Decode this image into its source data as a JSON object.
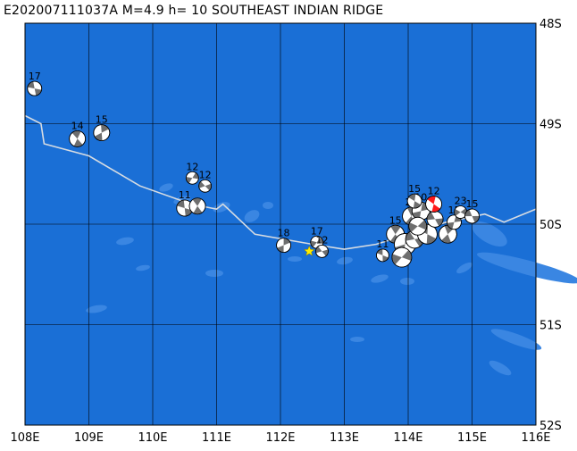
{
  "header": {
    "title": "E202007111037A  M=4.9  h= 10 SOUTHEAST INDIAN RIDGE"
  },
  "map": {
    "lon_range": [
      108,
      116
    ],
    "lat_range": [
      -52,
      -48
    ],
    "lon_ticks": [
      "108E",
      "109E",
      "110E",
      "111E",
      "112E",
      "113E",
      "114E",
      "115E",
      "116E"
    ],
    "lat_ticks": [
      "48S",
      "49S",
      "50S",
      "51S",
      "52S"
    ],
    "colors": {
      "ocean": "#1a6fd6",
      "shallow": "#3a86e2",
      "ridge": "#d7dce2",
      "grid": "#000000",
      "event": "#ff1a1a",
      "epicenter": "#ffee00"
    },
    "ridge_line": [
      [
        108,
        -48.92
      ],
      [
        108.25,
        -49.0
      ],
      [
        108.3,
        -49.2
      ],
      [
        109,
        -49.32
      ],
      [
        109.8,
        -49.62
      ],
      [
        110.6,
        -49.8
      ],
      [
        111.0,
        -49.85
      ],
      [
        111.1,
        -49.8
      ],
      [
        111.6,
        -50.1
      ],
      [
        112.5,
        -50.2
      ],
      [
        113.0,
        -50.25
      ],
      [
        113.5,
        -50.2
      ],
      [
        114.0,
        -50.1
      ],
      [
        114.6,
        -49.98
      ],
      [
        115.2,
        -49.9
      ],
      [
        115.5,
        -49.98
      ],
      [
        116,
        -49.85
      ]
    ],
    "epicenter": {
      "lon": 112.45,
      "lat": -50.27
    },
    "mechanisms": [
      {
        "lon": 108.15,
        "lat": -48.65,
        "label": "17",
        "r": 8
      },
      {
        "lon": 108.82,
        "lat": -49.15,
        "label": "14",
        "r": 9
      },
      {
        "lon": 109.2,
        "lat": -49.09,
        "label": "15",
        "r": 9
      },
      {
        "lon": 110.62,
        "lat": -49.54,
        "label": "12",
        "r": 7
      },
      {
        "lon": 110.82,
        "lat": -49.62,
        "label": "12",
        "r": 7
      },
      {
        "lon": 110.5,
        "lat": -49.84,
        "label": "11",
        "r": 9
      },
      {
        "lon": 110.7,
        "lat": -49.82,
        "label": "",
        "r": 9
      },
      {
        "lon": 112.05,
        "lat": -50.21,
        "label": "18",
        "r": 8
      },
      {
        "lon": 112.57,
        "lat": -50.18,
        "label": "17",
        "r": 7
      },
      {
        "lon": 112.65,
        "lat": -50.27,
        "label": "12",
        "r": 7
      },
      {
        "lon": 113.6,
        "lat": -50.31,
        "label": "11",
        "r": 7
      },
      {
        "lon": 113.8,
        "lat": -50.1,
        "label": "15",
        "r": 10
      },
      {
        "lon": 113.95,
        "lat": -50.2,
        "label": "",
        "r": 12
      },
      {
        "lon": 113.9,
        "lat": -50.33,
        "label": "",
        "r": 11
      },
      {
        "lon": 114.1,
        "lat": -50.15,
        "label": "",
        "r": 10
      },
      {
        "lon": 114.3,
        "lat": -50.1,
        "label": "",
        "r": 11
      },
      {
        "lon": 114.05,
        "lat": -49.92,
        "label": "20",
        "r": 10
      },
      {
        "lon": 114.2,
        "lat": -49.87,
        "label": "10",
        "r": 10
      },
      {
        "lon": 114.15,
        "lat": -50.02,
        "label": "",
        "r": 10
      },
      {
        "lon": 114.42,
        "lat": -49.95,
        "label": "",
        "r": 9
      },
      {
        "lon": 114.1,
        "lat": -49.77,
        "label": "15",
        "r": 8
      },
      {
        "lon": 114.62,
        "lat": -50.1,
        "label": "",
        "r": 10
      },
      {
        "lon": 114.72,
        "lat": -49.98,
        "label": "15",
        "r": 8
      },
      {
        "lon": 114.82,
        "lat": -49.88,
        "label": "23",
        "r": 7
      },
      {
        "lon": 115.0,
        "lat": -49.92,
        "label": "15",
        "r": 8
      },
      {
        "lon": 114.4,
        "lat": -49.8,
        "label": "12",
        "r": 9,
        "current": true
      }
    ]
  }
}
